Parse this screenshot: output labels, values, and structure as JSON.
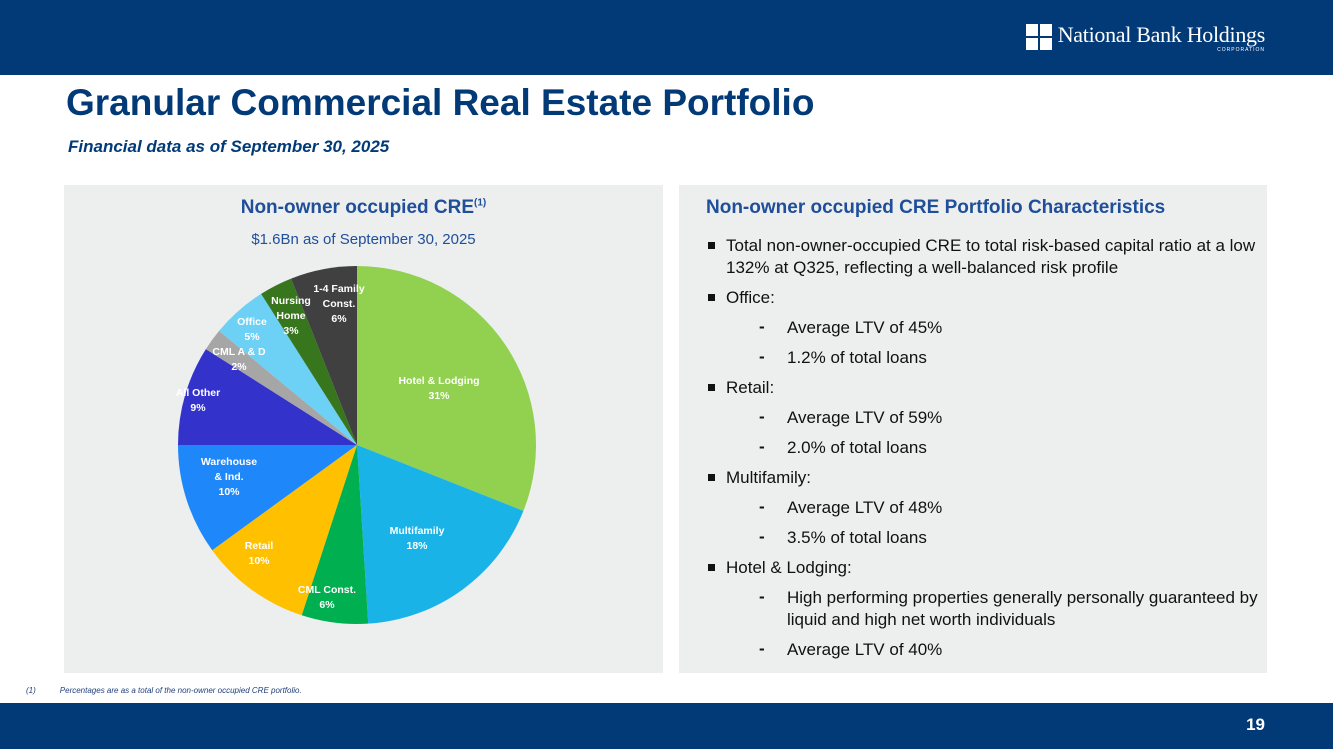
{
  "header": {
    "logo_name": "National Bank Holdings",
    "logo_sub": "CORPORATION"
  },
  "title": "Granular Commercial Real Estate Portfolio",
  "subtitle": "Financial data as of September 30, 2025",
  "left_panel": {
    "title": "Non-owner occupied CRE",
    "title_sup": "(1)",
    "subtitle": "$1.6Bn as of September 30, 2025"
  },
  "chart_data": {
    "type": "pie",
    "title": "Non-owner occupied CRE",
    "unit": "%",
    "categories": [
      "Hotel & Lodging",
      "Multifamily",
      "CML Const.",
      "Retail",
      "Warehouse & Ind.",
      "All Other",
      "CML A & D",
      "Office",
      "Nursing Home",
      "1-4 Family Const."
    ],
    "label_lines": [
      [
        "Hotel & Lodging"
      ],
      [
        "Multifamily"
      ],
      [
        "CML Const."
      ],
      [
        "Retail"
      ],
      [
        "Warehouse",
        "& Ind."
      ],
      [
        "All Other"
      ],
      [
        "CML A & D"
      ],
      [
        "Office"
      ],
      [
        "Nursing",
        "Home"
      ],
      [
        "1-4 Family",
        "Const."
      ]
    ],
    "values": [
      31,
      18,
      6,
      10,
      10,
      9,
      2,
      5,
      3,
      6
    ],
    "colors": [
      "#92d050",
      "#1ab3e8",
      "#00b050",
      "#ffc000",
      "#1e88fb",
      "#3333cc",
      "#a6a6a6",
      "#6dd0f5",
      "#38761d",
      "#404040"
    ],
    "start": "12 o'clock",
    "direction": "clockwise"
  },
  "right_panel": {
    "title": "Non-owner occupied CRE Portfolio Characteristics",
    "items": [
      {
        "type": "bullet",
        "text": "Total non-owner-occupied CRE to total risk-based capital ratio at a low 132% at Q325, reflecting a well-balanced risk profile"
      },
      {
        "type": "bullet",
        "text": "Office:"
      },
      {
        "type": "dash",
        "text": "Average LTV of 45%"
      },
      {
        "type": "dash",
        "text": "1.2% of total loans"
      },
      {
        "type": "bullet",
        "text": "Retail:"
      },
      {
        "type": "dash",
        "text": "Average LTV of 59%"
      },
      {
        "type": "dash",
        "text": "2.0% of total loans"
      },
      {
        "type": "bullet",
        "text": "Multifamily:"
      },
      {
        "type": "dash",
        "text": "Average LTV of 48%"
      },
      {
        "type": "dash",
        "text": "3.5% of total loans"
      },
      {
        "type": "bullet",
        "text": "Hotel & Lodging:"
      },
      {
        "type": "dash",
        "text": "High performing properties generally personally guaranteed by liquid and high net worth individuals"
      },
      {
        "type": "dash",
        "text": "Average LTV of 40%"
      }
    ]
  },
  "footnote": {
    "marker": "(1)",
    "text": "Percentages are as a total of the non-owner occupied CRE portfolio."
  },
  "page_number": "19"
}
